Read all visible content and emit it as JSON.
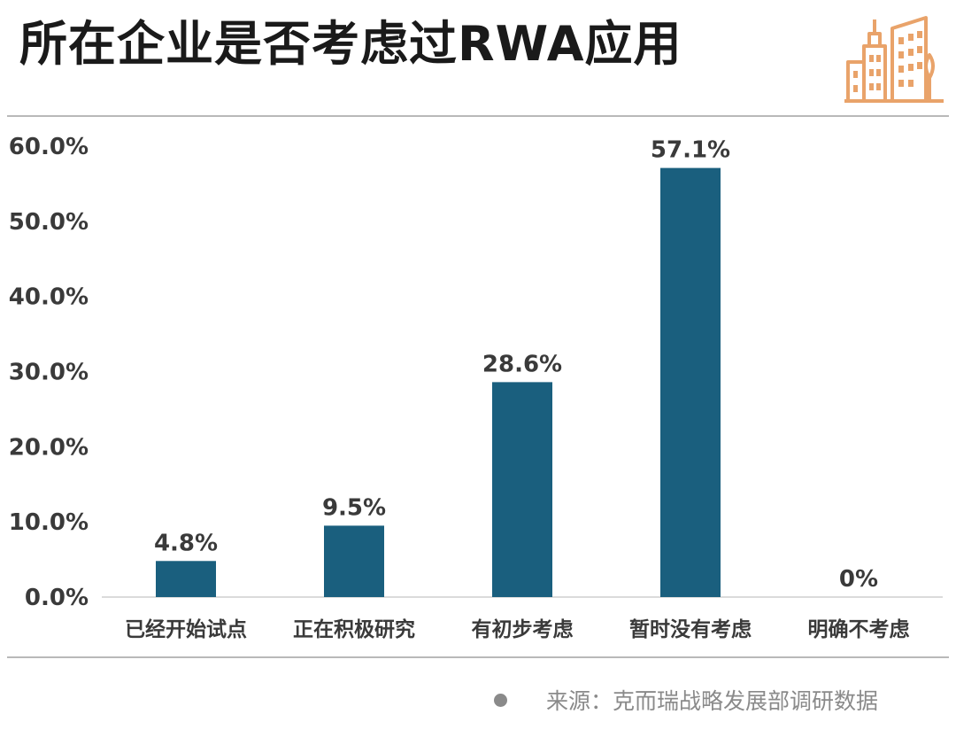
{
  "header": {
    "title": "所在企业是否考虑过RWA应用",
    "logo_icon": "building-icon"
  },
  "footer": {
    "source": "来源：克而瑞战略发展部调研数据"
  },
  "colors": {
    "bar": "#1a5f7e",
    "accent": "#e9a36a",
    "text": "#3a3a3a"
  },
  "chart_data": {
    "type": "bar",
    "title": "所在企业是否考虑过RWA应用",
    "categories": [
      "已经开始试点",
      "正在积极研究",
      "有初步考虑",
      "暂时没有考虑",
      "明确不考虑"
    ],
    "values": [
      4.8,
      9.5,
      28.6,
      57.1,
      0
    ],
    "data_labels": [
      "4.8%",
      "9.5%",
      "28.6%",
      "57.1%",
      "0%"
    ],
    "yticks": [
      "0.0%",
      "10.0%",
      "20.0%",
      "30.0%",
      "40.0%",
      "50.0%",
      "60.0%"
    ],
    "ylim": [
      0,
      60
    ],
    "xlabel": "",
    "ylabel": "",
    "grid": false,
    "legend": "none"
  }
}
